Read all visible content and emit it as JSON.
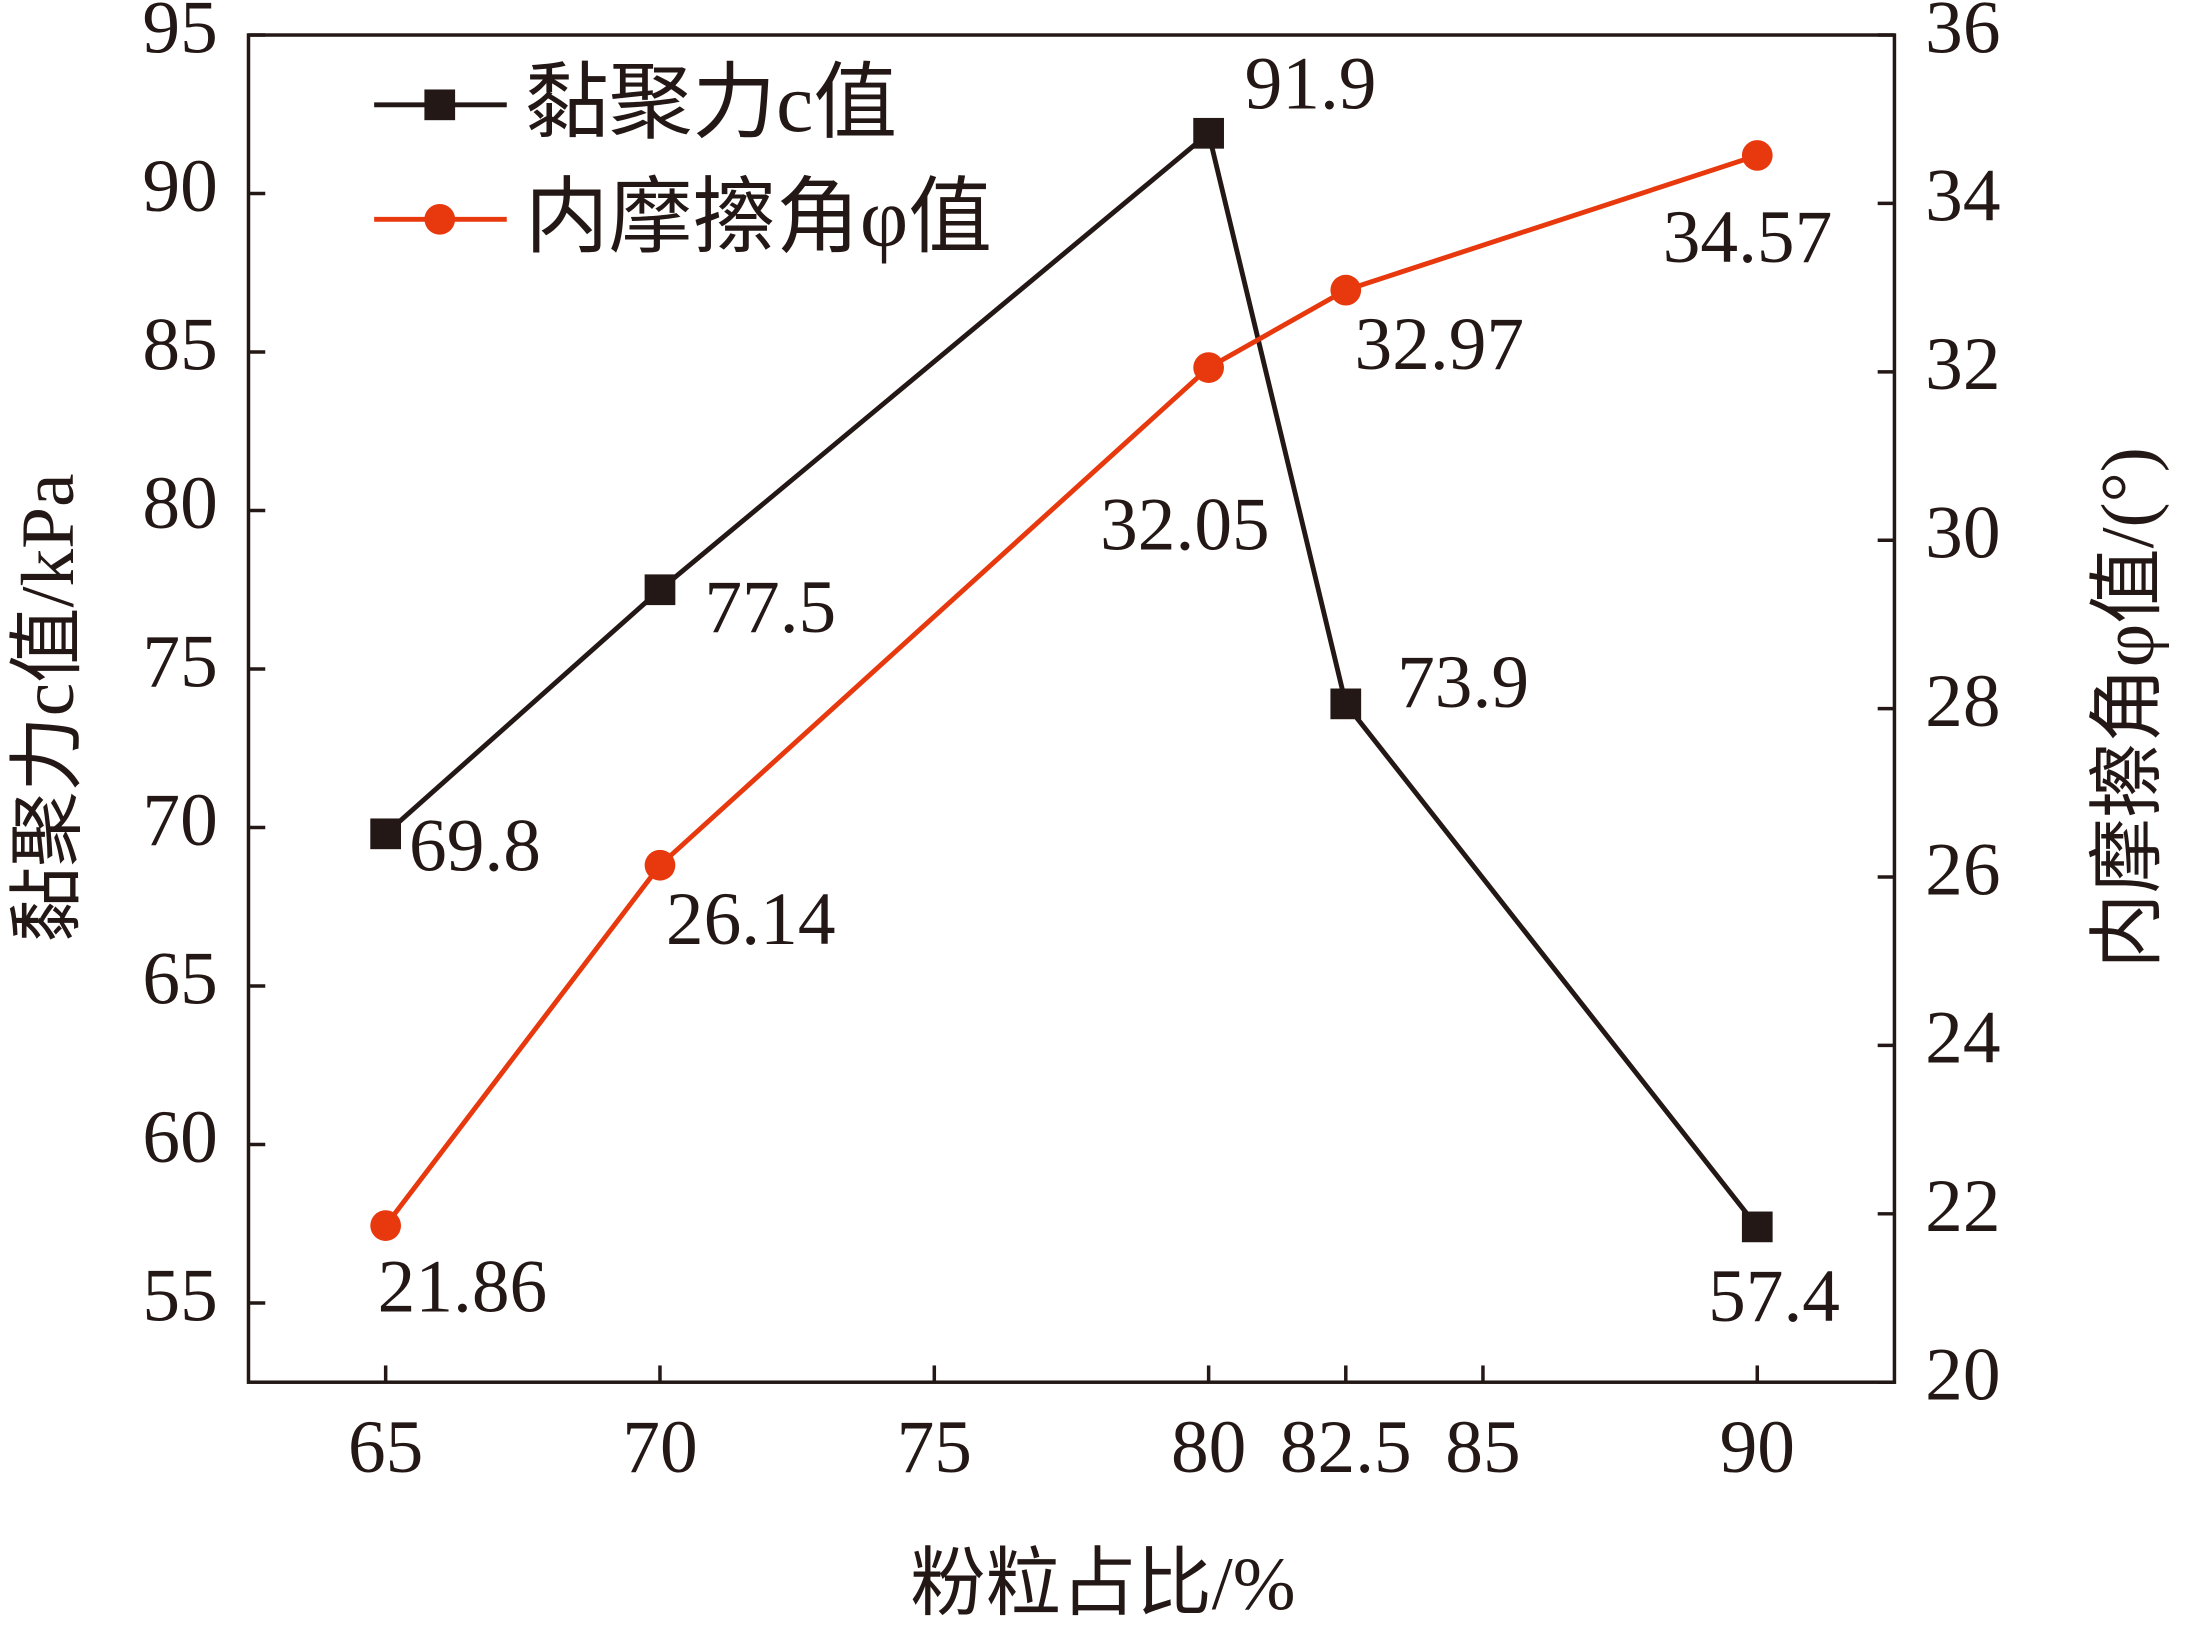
{
  "chart_data": {
    "type": "line",
    "x": [
      65,
      70,
      80,
      82.5,
      90
    ],
    "xlabel": "粉粒占比/%",
    "ylabel": "黏聚力c值/kPa",
    "y2label": "内摩擦角φ值/(°)",
    "xlim": [
      62.5,
      92.5
    ],
    "xticks": [
      65,
      70,
      75,
      80,
      82.5,
      85,
      90
    ],
    "ylim": [
      52.5,
      95
    ],
    "yticks": [
      55,
      60,
      65,
      70,
      75,
      80,
      85,
      90,
      95
    ],
    "y2lim": [
      20,
      36
    ],
    "y2ticks": [
      20,
      22,
      24,
      26,
      28,
      30,
      32,
      34,
      36
    ],
    "legend": "upper left",
    "series": [
      {
        "name": "黏聚力c值",
        "color": "#231815",
        "marker": "square",
        "values": [
          69.8,
          77.5,
          91.9,
          73.9,
          57.4
        ]
      },
      {
        "name": "内摩擦角φ值",
        "color": "#e8380d",
        "marker": "circle",
        "axis": "y2",
        "values": [
          21.86,
          26.14,
          32.05,
          32.97,
          34.57
        ]
      }
    ]
  }
}
